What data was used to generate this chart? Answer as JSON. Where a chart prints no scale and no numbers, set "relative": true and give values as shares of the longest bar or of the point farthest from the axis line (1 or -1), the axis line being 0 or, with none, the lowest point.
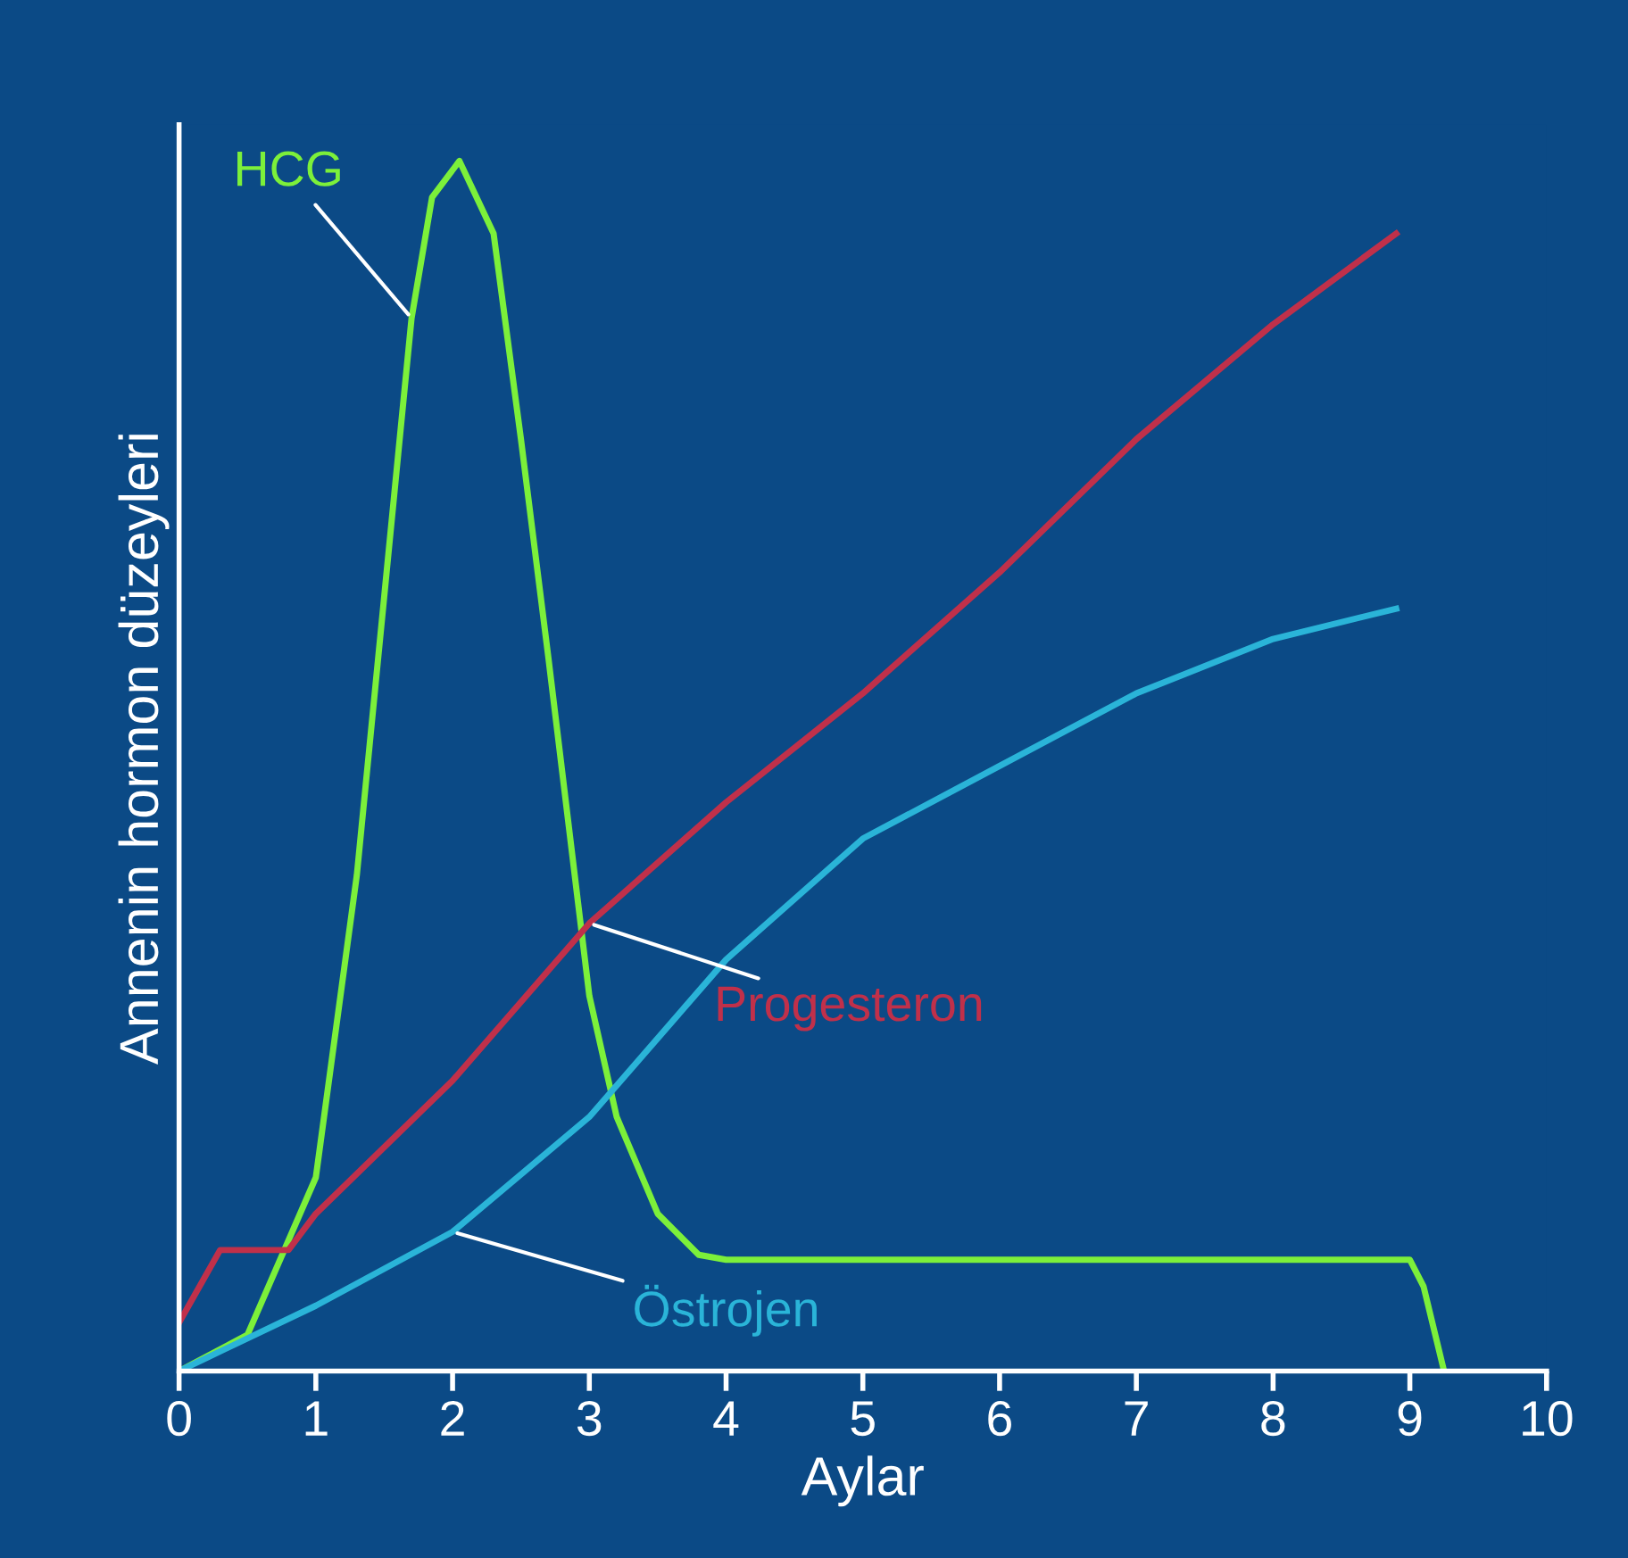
{
  "chart_data": {
    "type": "line",
    "relative": true,
    "xlabel": "Aylar",
    "ylabel": "Annenin hormon düzeyleri",
    "xlim": [
      0,
      10
    ],
    "xticks": [
      0,
      1,
      2,
      3,
      4,
      5,
      6,
      7,
      8,
      9,
      10
    ],
    "legend": false,
    "grid": false,
    "marker": "none",
    "line_style": "solid",
    "tick_labels": "x",
    "series": [
      {
        "name": "HCG",
        "color": "#7cf03a",
        "x": [
          0,
          0.5,
          1.0,
          1.3,
          1.5,
          1.7,
          1.85,
          2.05,
          2.3,
          2.5,
          2.7,
          2.85,
          3.0,
          3.2,
          3.5,
          3.8,
          4.0,
          9.0,
          9.1,
          9.25
        ],
        "values": [
          0,
          0.03,
          0.16,
          0.41,
          0.64,
          0.87,
          0.97,
          1.0,
          0.94,
          0.77,
          0.59,
          0.45,
          0.31,
          0.21,
          0.13,
          0.096,
          0.092,
          0.092,
          0.07,
          0
        ]
      },
      {
        "name": "Progesteron",
        "color": "#c0304a",
        "x": [
          0,
          0.3,
          0.8,
          1.0,
          2.0,
          3.0,
          4.0,
          5.0,
          6.0,
          7.0,
          8.0,
          8.9
        ],
        "values": [
          0.04,
          0.1,
          0.1,
          0.13,
          0.24,
          0.37,
          0.47,
          0.56,
          0.66,
          0.77,
          0.865,
          0.94
        ]
      },
      {
        "name": "Östrojen",
        "color": "#2ab4d8",
        "x": [
          0,
          1,
          2,
          3,
          4,
          5,
          6,
          7,
          8,
          8.9
        ],
        "values": [
          0,
          0.054,
          0.115,
          0.21,
          0.34,
          0.44,
          0.5,
          0.56,
          0.605,
          0.63
        ]
      }
    ]
  }
}
